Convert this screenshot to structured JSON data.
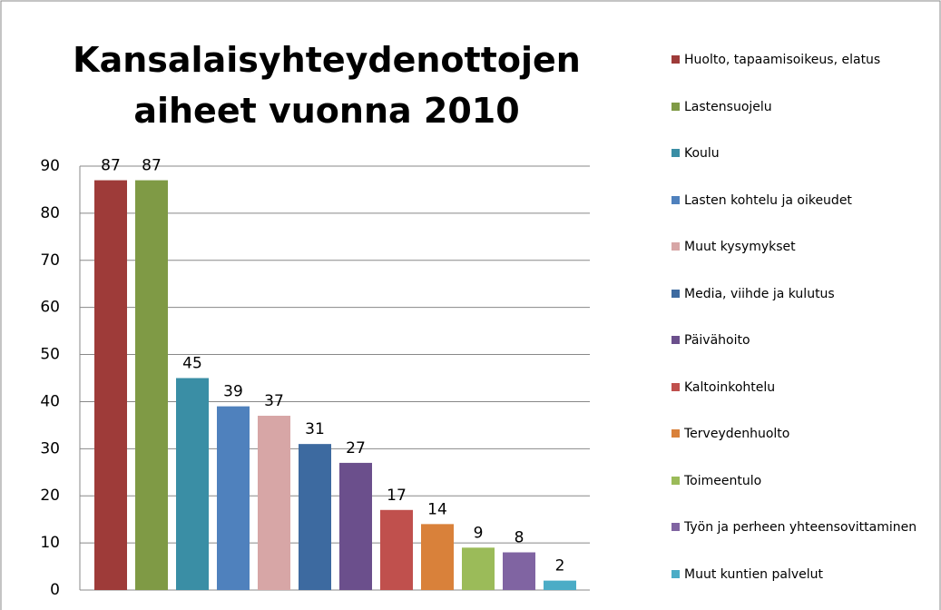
{
  "chart_data": {
    "type": "bar",
    "title": "Kansalaisyhteydenottojen aiheet vuonna 2010",
    "series": [
      {
        "name": "Huolto, tapaamisoikeus, elatus",
        "color": "#9e3b39",
        "values": [
          87
        ]
      },
      {
        "name": "Lastensuojelu",
        "color": "#7f9a45",
        "values": [
          87
        ]
      },
      {
        "name": "Koulu",
        "color": "#3a8ea5",
        "values": [
          45
        ]
      },
      {
        "name": "Lasten kohtelu ja oikeudet",
        "color": "#4f81bd",
        "values": [
          39
        ]
      },
      {
        "name": "Muut kysymykset",
        "color": "#d7a6a6",
        "values": [
          37
        ]
      },
      {
        "name": "Media, viihde ja kulutus",
        "color": "#3d6aa0",
        "values": [
          31
        ]
      },
      {
        "name": "Päivähoito",
        "color": "#6b4f8c",
        "values": [
          27
        ]
      },
      {
        "name": "Kaltoinkohtelu",
        "color": "#c0504d",
        "values": [
          17
        ]
      },
      {
        "name": "Terveydenhuolto",
        "color": "#d9813a",
        "values": [
          14
        ]
      },
      {
        "name": "Toimeentulo",
        "color": "#9bbb59",
        "values": [
          9
        ]
      },
      {
        "name": "Työn ja perheen yhteensovittaminen",
        "color": "#8064a2",
        "values": [
          8
        ]
      },
      {
        "name": "Muut kuntien palvelut",
        "color": "#4bacc6",
        "values": [
          2
        ]
      }
    ],
    "ylim": [
      0,
      90
    ],
    "yticks": [
      0,
      10,
      20,
      30,
      40,
      50,
      60,
      70,
      80,
      90
    ],
    "grid": true,
    "legend": "right"
  }
}
